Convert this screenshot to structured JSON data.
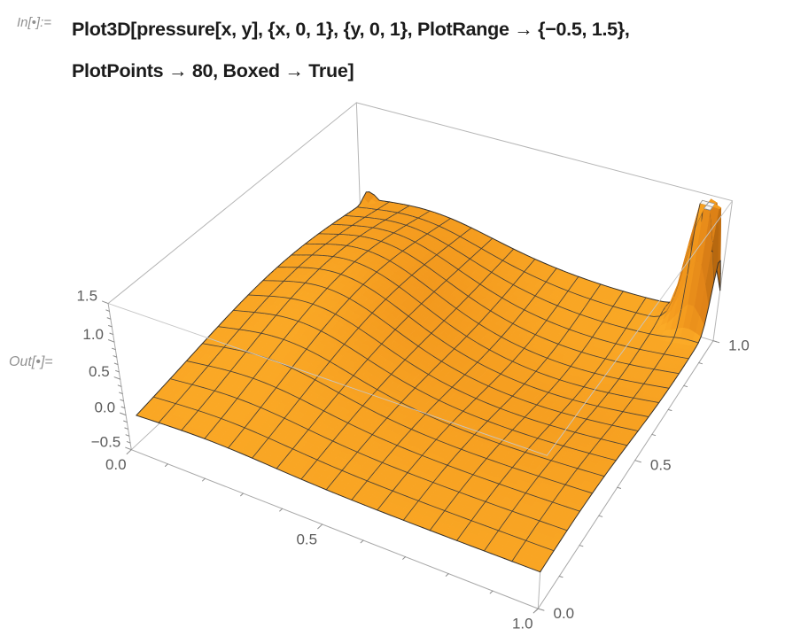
{
  "notebook": {
    "input_cell": {
      "label": "In[•]:=",
      "code_line1": "Plot3D[pressure[x, y], {x, 0, 1}, {y, 0, 1}, PlotRange → {−0.5, 1.5},",
      "code_line2": "PlotPoints → 80, Boxed → True]"
    },
    "output_cell": {
      "label": "Out[•]="
    }
  },
  "chart_data": {
    "type": "surface3d",
    "function_label": "pressure[x, y]",
    "x_range": [
      0,
      1
    ],
    "y_range": [
      0,
      1
    ],
    "z_range": [
      -0.5,
      1.5
    ],
    "x_ticks": [
      {
        "v": 0,
        "label": "0.0"
      },
      {
        "v": 0.5,
        "label": "0.5"
      },
      {
        "v": 1,
        "label": "1.0"
      }
    ],
    "y_ticks": [
      {
        "v": 0,
        "label": "0.0"
      },
      {
        "v": 0.5,
        "label": "0.5"
      },
      {
        "v": 1,
        "label": "1.0"
      }
    ],
    "z_ticks": [
      {
        "v": -0.5,
        "label": "−0.5"
      },
      {
        "v": 0,
        "label": "0.0"
      },
      {
        "v": 0.5,
        "label": "0.5"
      },
      {
        "v": 1,
        "label": "1.0"
      },
      {
        "v": 1.5,
        "label": "1.5"
      }
    ],
    "minor_tick_step": 0.1,
    "boxed": true,
    "mesh_divisions": 16,
    "plot_points": 80,
    "view_point": [
      1.3,
      -2.4,
      2.0
    ],
    "box_ratios": [
      1,
      1,
      0.4
    ],
    "surface_model": {
      "base": 0.02,
      "sin_y_amp": 0.1,
      "gaussians": [
        [
          0.45,
          0.22,
          0.6,
          20,
          5
        ],
        [
          -0.38,
          0.75,
          0.68,
          7,
          7
        ],
        [
          2.4,
          0.96,
          0.96,
          600,
          600
        ]
      ],
      "corner_noise": {
        "amp": 0.3,
        "k": 650,
        "cx": 0,
        "cy": 1
      },
      "clip_max": 1.5,
      "domain_x": [
        0.03,
        1
      ],
      "domain_y": [
        0,
        1
      ]
    },
    "features": {
      "hill": "broad ridge z≈0.5 near (x≈0.2, y≈0.6)",
      "bowl": "shaded depression z≈−0.15 near (x≈0.75, y≈0.7)",
      "spike": "thin spike clipped flat at z=1.5 near corner (1,1) with white cap",
      "noise": "small jagged oscillations at corner (0,1)"
    },
    "colors": {
      "surface": "#f59b1e",
      "surface_highlight": "#ffdf73",
      "surface_shadow": "#452605",
      "mesh": "#4a4136",
      "box_edge": "#b5b5b5",
      "tick_label": "#5c5c5c",
      "clip_cap": "#f7f6f3"
    }
  }
}
